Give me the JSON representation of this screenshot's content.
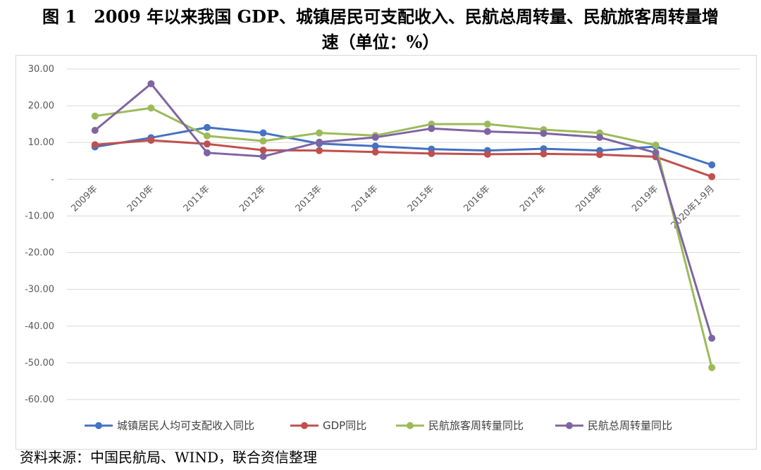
{
  "title": {
    "line1": "图 1　2009 年以来我国 GDP、城镇居民可支配收入、民航总周转量、民航旅客周转量增",
    "line2": "速（单位：%）"
  },
  "source": "资料来源：中国民航局、WIND，联合资信整理",
  "chart_data": {
    "type": "line",
    "categories": [
      "2009年",
      "2010年",
      "2011年",
      "2012年",
      "2013年",
      "2014年",
      "2015年",
      "2016年",
      "2017年",
      "2018年",
      "2019年",
      "2020年1-9月"
    ],
    "ylim": [
      -60,
      30
    ],
    "yticks": [
      30,
      20,
      10,
      0,
      -10,
      -20,
      -30,
      -40,
      -50,
      -60
    ],
    "ytick_labels": [
      "30.00",
      "20.00",
      "10.00",
      "-",
      "-10.00",
      "-20.00",
      "-30.00",
      "-40.00",
      "-50.00",
      "-60.00"
    ],
    "grid": true,
    "legend_position": "bottom",
    "series": [
      {
        "name": "城镇居民人均可支配收入同比",
        "color": "#4472C4",
        "values": [
          8.8,
          11.3,
          14.1,
          12.6,
          9.7,
          9.0,
          8.2,
          7.8,
          8.3,
          7.8,
          8.9,
          3.9
        ]
      },
      {
        "name": "GDP同比",
        "color": "#C0504D",
        "values": [
          9.4,
          10.6,
          9.6,
          7.9,
          7.8,
          7.4,
          7.0,
          6.8,
          6.9,
          6.7,
          6.1,
          0.7
        ]
      },
      {
        "name": "民航旅客周转量同比",
        "color": "#9BBB59",
        "values": [
          17.2,
          19.4,
          11.8,
          10.4,
          12.6,
          11.9,
          15.0,
          15.0,
          13.5,
          12.6,
          9.3,
          -51.3
        ]
      },
      {
        "name": "民航总周转量同比",
        "color": "#8064A2",
        "values": [
          13.3,
          26.0,
          7.2,
          6.2,
          10.1,
          11.4,
          13.8,
          13.0,
          12.5,
          11.4,
          7.2,
          -43.3
        ]
      }
    ]
  }
}
